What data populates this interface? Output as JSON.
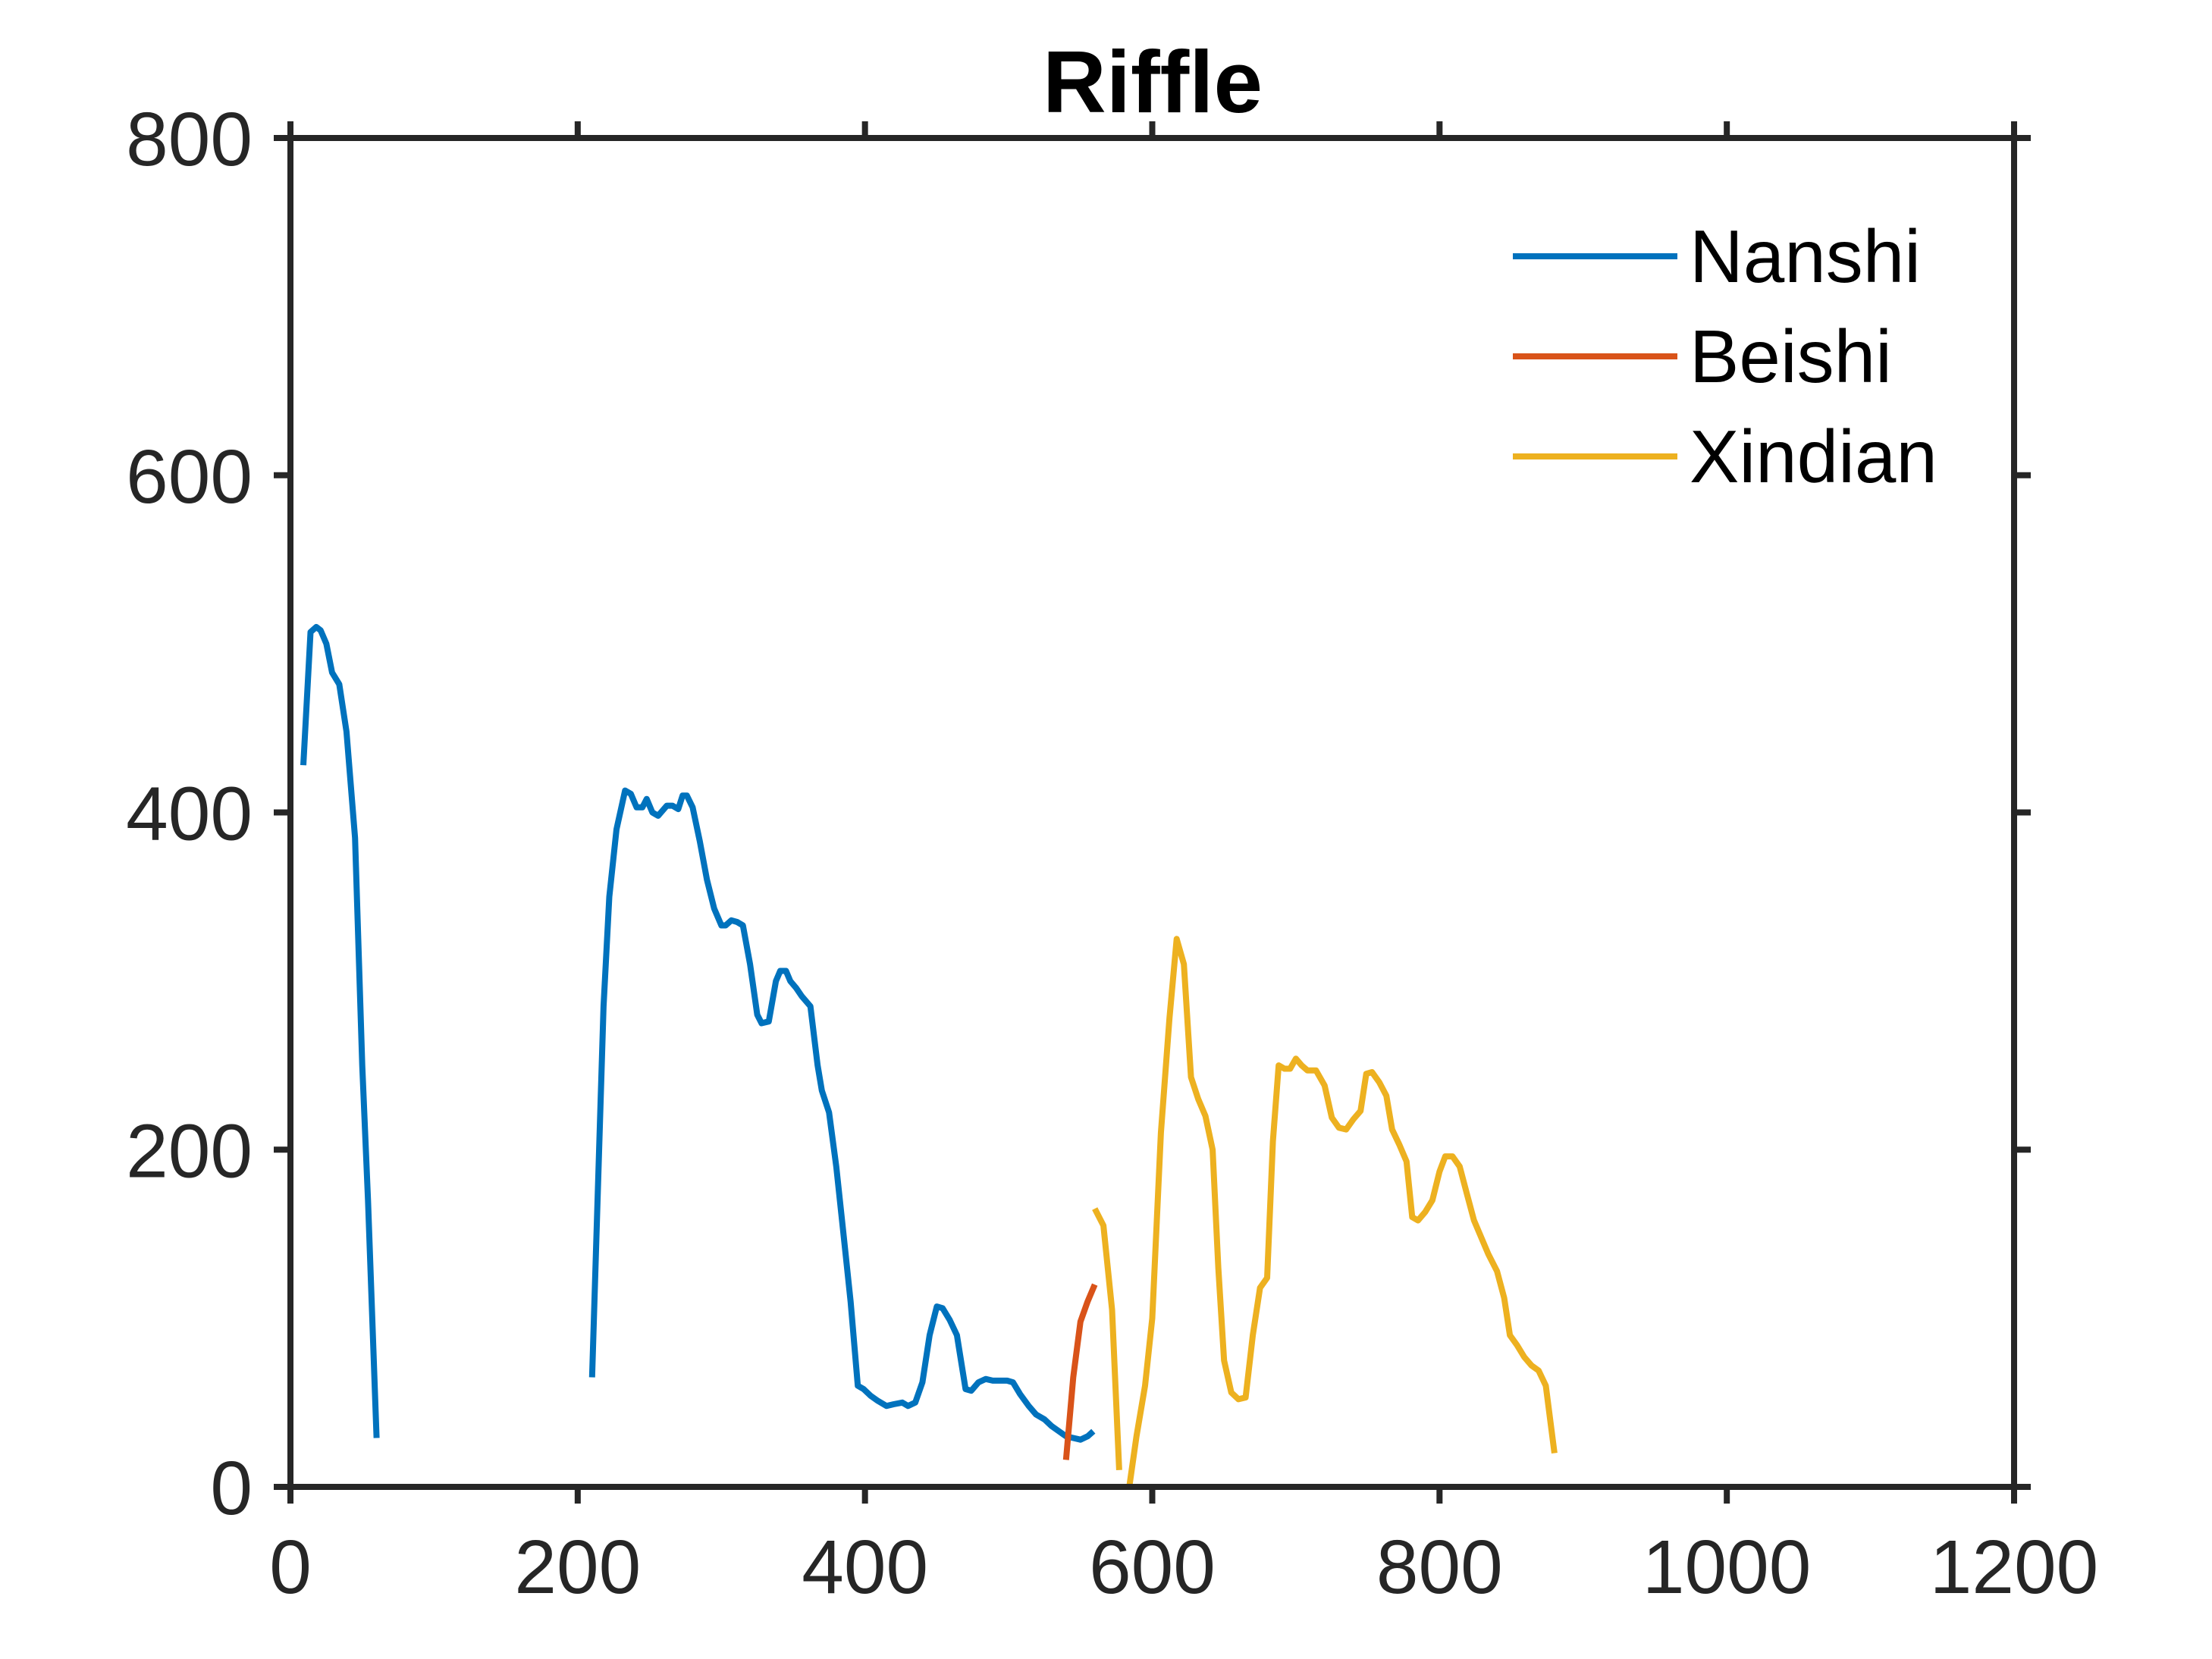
{
  "chart_data": {
    "type": "line",
    "title": "Riffle",
    "xlabel": "",
    "ylabel": "",
    "xlim": [
      0,
      1200
    ],
    "ylim": [
      0,
      800
    ],
    "xticks": [
      0,
      200,
      400,
      600,
      800,
      1000,
      1200
    ],
    "yticks": [
      0,
      200,
      400,
      600,
      800
    ],
    "grid": false,
    "legend_position": "top-right",
    "colors": {
      "axis": "#262626",
      "text": "#000000"
    },
    "series": [
      {
        "name": "Nanshi",
        "color": "#0072BD",
        "segments": [
          [
            [
              9,
              428
            ],
            [
              14,
              507
            ],
            [
              18,
              510
            ],
            [
              21,
              508
            ],
            [
              25,
              500
            ],
            [
              29,
              483
            ],
            [
              34,
              476
            ],
            [
              39,
              448
            ],
            [
              45,
              385
            ],
            [
              50,
              250
            ],
            [
              54,
              170
            ],
            [
              60,
              29
            ]
          ],
          [
            [
              210,
              65
            ],
            [
              218,
              285
            ],
            [
              222,
              350
            ],
            [
              227,
              390
            ],
            [
              233,
              413
            ],
            [
              237,
              411
            ],
            [
              241,
              403
            ],
            [
              245,
              403
            ],
            [
              248,
              408
            ],
            [
              252,
              400
            ],
            [
              256,
              398
            ],
            [
              262,
              404
            ],
            [
              266,
              404
            ],
            [
              270,
              402
            ],
            [
              273,
              410
            ],
            [
              276,
              410
            ],
            [
              280,
              403
            ],
            [
              285,
              383
            ],
            [
              290,
              360
            ],
            [
              295,
              343
            ],
            [
              300,
              333
            ],
            [
              303,
              333
            ],
            [
              307,
              336
            ],
            [
              311,
              335
            ],
            [
              315,
              333
            ],
            [
              320,
              310
            ],
            [
              325,
              280
            ],
            [
              328,
              275
            ],
            [
              333,
              276
            ],
            [
              338,
              300
            ],
            [
              341,
              306
            ],
            [
              345,
              306
            ],
            [
              348,
              300
            ],
            [
              352,
              296
            ],
            [
              356,
              291
            ],
            [
              362,
              285
            ],
            [
              367,
              250
            ],
            [
              370,
              235
            ],
            [
              375,
              222
            ],
            [
              380,
              190
            ],
            [
              385,
              150
            ],
            [
              390,
              110
            ],
            [
              395,
              60
            ],
            [
              399,
              58
            ],
            [
              404,
              54
            ],
            [
              409,
              51
            ],
            [
              415,
              48
            ],
            [
              420,
              49
            ],
            [
              426,
              50
            ],
            [
              430,
              48
            ],
            [
              435,
              50
            ],
            [
              440,
              62
            ],
            [
              445,
              90
            ],
            [
              450,
              107
            ],
            [
              454,
              106
            ],
            [
              459,
              99
            ],
            [
              464,
              90
            ],
            [
              470,
              58
            ],
            [
              474,
              57
            ],
            [
              479,
              62
            ],
            [
              484,
              64
            ],
            [
              489,
              63
            ],
            [
              494,
              63
            ],
            [
              499,
              63
            ],
            [
              503,
              62
            ],
            [
              508,
              55
            ],
            [
              514,
              48
            ],
            [
              519,
              43
            ],
            [
              525,
              40
            ],
            [
              530,
              36
            ],
            [
              535,
              33
            ],
            [
              540,
              30
            ],
            [
              545,
              29
            ],
            [
              550,
              28
            ],
            [
              555,
              30
            ],
            [
              559,
              33
            ]
          ]
        ]
      },
      {
        "name": "Beishi",
        "color": "#D95319",
        "segments": [
          [
            [
              540,
              16
            ],
            [
              545,
              65
            ],
            [
              550,
              98
            ],
            [
              555,
              110
            ],
            [
              560,
              120
            ]
          ]
        ]
      },
      {
        "name": "Xindian",
        "color": "#EDB120",
        "segments": [
          [
            [
              560,
              165
            ],
            [
              566,
              155
            ],
            [
              572,
              105
            ],
            [
              577,
              10
            ]
          ],
          [
            [
              584,
              0
            ],
            [
              589,
              30
            ],
            [
              595,
              60
            ],
            [
              600,
              100
            ],
            [
              606,
              210
            ],
            [
              612,
              278
            ],
            [
              617,
              325
            ],
            [
              622,
              310
            ],
            [
              627,
              243
            ],
            [
              632,
              230
            ],
            [
              637,
              220
            ],
            [
              642,
              200
            ],
            [
              646,
              130
            ],
            [
              650,
              75
            ],
            [
              655,
              56
            ],
            [
              660,
              52
            ],
            [
              665,
              53
            ],
            [
              670,
              90
            ],
            [
              675,
              118
            ],
            [
              680,
              124
            ],
            [
              684,
              205
            ],
            [
              688,
              250
            ],
            [
              692,
              248
            ],
            [
              696,
              248
            ],
            [
              700,
              254
            ],
            [
              704,
              250
            ],
            [
              708,
              247
            ],
            [
              714,
              247
            ],
            [
              720,
              238
            ],
            [
              725,
              219
            ],
            [
              730,
              213
            ],
            [
              735,
              212
            ],
            [
              740,
              218
            ],
            [
              745,
              223
            ],
            [
              749,
              245
            ],
            [
              753,
              246
            ],
            [
              758,
              240
            ],
            [
              763,
              232
            ],
            [
              767,
              212
            ],
            [
              772,
              203
            ],
            [
              777,
              193
            ],
            [
              781,
              160
            ],
            [
              785,
              158
            ],
            [
              790,
              163
            ],
            [
              795,
              170
            ],
            [
              800,
              187
            ],
            [
              804,
              196
            ],
            [
              809,
              196
            ],
            [
              814,
              190
            ],
            [
              819,
              174
            ],
            [
              824,
              158
            ],
            [
              828,
              150
            ],
            [
              834,
              138
            ],
            [
              840,
              128
            ],
            [
              845,
              112
            ],
            [
              849,
              90
            ],
            [
              854,
              84
            ],
            [
              859,
              77
            ],
            [
              864,
              72
            ],
            [
              869,
              69
            ],
            [
              874,
              60
            ],
            [
              880,
              20
            ]
          ]
        ]
      }
    ]
  }
}
